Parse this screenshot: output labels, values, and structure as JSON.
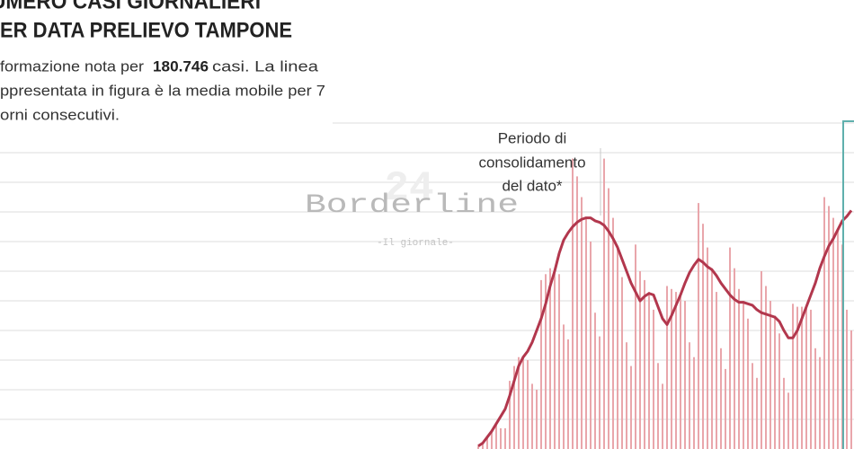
{
  "chart_data": {
    "type": "bar",
    "title_lines": [
      "UMERO CASI GIORNALIERI",
      "ER DATA PRELIEVO TAMPONE"
    ],
    "description": [
      "formazione nota per",
      "180.746",
      "casi. La linea",
      "ppresentata in figura è la media mobile per 7",
      "orni consecutivi."
    ],
    "annotation": [
      "Periodo di",
      "consolidamento",
      "del dato*"
    ],
    "watermark": {
      "name": "Borderline",
      "number": "24",
      "tagline": "-Il giornale-"
    },
    "categories": [
      null,
      null,
      null,
      null,
      null,
      null,
      null,
      null,
      null,
      null,
      null,
      null,
      null,
      null,
      null,
      null,
      null,
      null,
      null,
      null,
      null,
      null,
      null,
      null,
      null,
      null,
      null,
      null,
      null,
      null,
      null,
      null,
      null,
      null,
      null,
      null,
      null,
      null,
      null,
      null,
      null,
      null,
      null,
      null,
      null,
      null,
      null,
      null,
      null,
      null,
      null,
      null,
      null,
      null,
      null,
      null,
      null,
      null,
      null,
      null,
      null,
      null,
      null,
      null,
      null,
      null,
      null,
      null,
      null,
      null,
      null,
      null,
      null,
      null,
      null,
      null,
      null,
      null,
      null,
      null,
      null,
      null,
      null,
      null
    ],
    "series": [
      {
        "type": "bar",
        "color": "#e9a6ab",
        "values": [
          0.1,
          0.2,
          0.4,
          0.6,
          0.8,
          0.7,
          0.7,
          2.3,
          2.8,
          3.1,
          3.1,
          3.0,
          2.2,
          2.0,
          5.7,
          5.9,
          6.1,
          6.0,
          5.9,
          4.2,
          3.7,
          9.8,
          9.2,
          8.5,
          7.8,
          7.0,
          4.6,
          3.8,
          9.8,
          8.8,
          7.8,
          6.8,
          5.8,
          3.6,
          2.8,
          6.9,
          6.0,
          5.7,
          5.3,
          4.7,
          2.9,
          2.2,
          5.5,
          5.4,
          5.3,
          5.2,
          5.0,
          3.6,
          3.1,
          8.3,
          7.6,
          6.8,
          6.1,
          5.3,
          3.4,
          2.7,
          6.8,
          6.1,
          5.4,
          5.0,
          4.4,
          2.9,
          2.4,
          6.0,
          5.5,
          5.0,
          4.5,
          3.9,
          2.4,
          1.9,
          4.9,
          4.8,
          4.8,
          4.8,
          4.7,
          3.4,
          3.1,
          8.5,
          8.2,
          7.8,
          7.4,
          6.9,
          4.7,
          4.0
        ]
      },
      {
        "type": "line",
        "color": "#b2374d",
        "values": [
          0.1,
          0.2,
          0.4,
          0.6,
          0.85,
          1.1,
          1.35,
          1.8,
          2.3,
          2.8,
          3.1,
          3.3,
          3.6,
          4.0,
          4.4,
          4.9,
          5.5,
          6.0,
          6.6,
          7.05,
          7.3,
          7.5,
          7.65,
          7.75,
          7.8,
          7.8,
          7.7,
          7.65,
          7.55,
          7.35,
          7.1,
          6.8,
          6.4,
          6.0,
          5.6,
          5.3,
          5.0,
          5.15,
          5.25,
          5.2,
          4.8,
          4.4,
          4.2,
          4.5,
          4.85,
          5.2,
          5.6,
          5.95,
          6.2,
          6.4,
          6.3,
          6.15,
          6.05,
          5.85,
          5.6,
          5.4,
          5.2,
          5.05,
          4.95,
          4.95,
          4.9,
          4.85,
          4.7,
          4.6,
          4.55,
          4.5,
          4.45,
          4.3,
          4.0,
          3.75,
          3.75,
          4.0,
          4.4,
          4.8,
          5.2,
          5.6,
          6.1,
          6.5,
          6.85,
          7.1,
          7.4,
          7.7,
          7.85,
          8.05
        ]
      }
    ],
    "ylim": [
      0,
      11
    ],
    "yticks": [
      1,
      2,
      3,
      4,
      5,
      6,
      7,
      8,
      9,
      10,
      11
    ],
    "grid": true
  }
}
